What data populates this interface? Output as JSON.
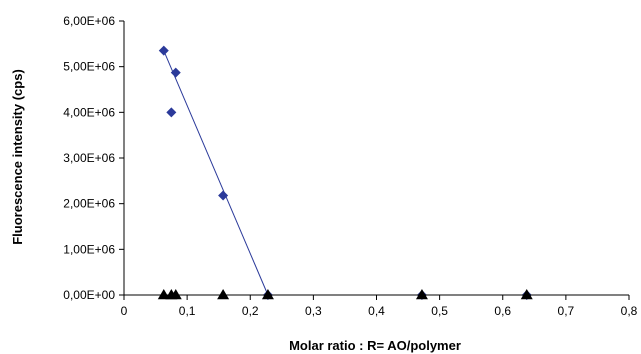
{
  "chart_data": {
    "type": "scatter",
    "title": "",
    "xlabel": "Molar ratio : R= AO/polymer",
    "ylabel": "Fluorescence intensity (cps)",
    "xlim": [
      0,
      0.8
    ],
    "ylim": [
      0,
      6000000
    ],
    "x_ticks": [
      "0",
      "0,1",
      "0,2",
      "0,3",
      "0,4",
      "0,5",
      "0,6",
      "0,7",
      "0,8"
    ],
    "y_ticks": [
      "0,00E+00",
      "1,00E+06",
      "2,00E+06",
      "3,00E+06",
      "4,00E+06",
      "5,00E+06",
      "6,00E+06"
    ],
    "grid": false,
    "legend": "none",
    "series": [
      {
        "marker": "diamond",
        "color": "#2b3a9a",
        "points": [
          {
            "x": 0.063,
            "y": 5350000
          },
          {
            "x": 0.075,
            "y": 4000000
          },
          {
            "x": 0.082,
            "y": 4870000
          },
          {
            "x": 0.157,
            "y": 2180000
          },
          {
            "x": 0.228,
            "y": 0
          },
          {
            "x": 0.472,
            "y": 0
          },
          {
            "x": 0.638,
            "y": 0
          }
        ]
      },
      {
        "marker": "triangle",
        "color": "#000000",
        "points": [
          {
            "x": 0.063,
            "y": 0
          },
          {
            "x": 0.075,
            "y": 0
          },
          {
            "x": 0.082,
            "y": 0
          },
          {
            "x": 0.157,
            "y": 0
          },
          {
            "x": 0.228,
            "y": 0
          },
          {
            "x": 0.472,
            "y": 0
          },
          {
            "x": 0.638,
            "y": 0
          }
        ]
      }
    ],
    "trendlines": [
      {
        "color": "#2b3a9a",
        "points": [
          {
            "x": 0.063,
            "y": 5350000
          },
          {
            "x": 0.228,
            "y": 0
          }
        ]
      },
      {
        "color": "#2b3a9a",
        "points": [
          {
            "x": 0.228,
            "y": 0
          },
          {
            "x": 0.638,
            "y": 0
          }
        ]
      }
    ]
  }
}
